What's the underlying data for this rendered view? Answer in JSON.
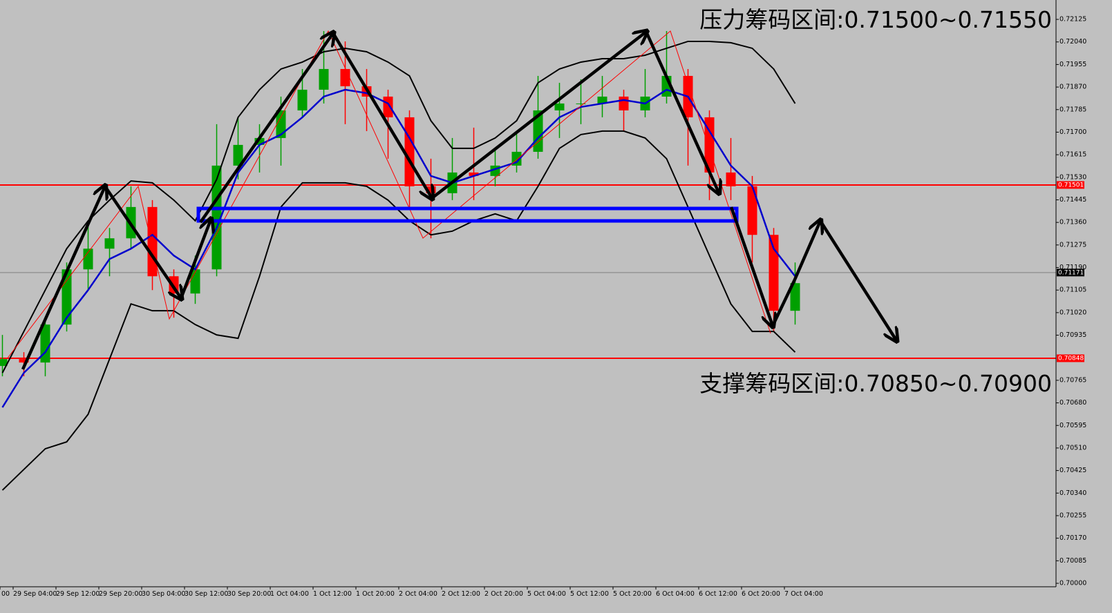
{
  "chart_data": {
    "type": "candlestick",
    "annotations": [
      "压力筹码区间:0.71500~0.71550",
      "支撑筹码区间:0.70850~0.70900"
    ],
    "xtick_labels": [
      "00",
      "29 Sep 04:00",
      "29 Sep 12:00",
      "29 Sep 20:00",
      "30 Sep 04:00",
      "30 Sep 12:00",
      "30 Sep 20:00",
      "1 Oct 04:00",
      "1 Oct 12:00",
      "1 Oct 20:00",
      "2 Oct 04:00",
      "2 Oct 12:00",
      "2 Oct 20:00",
      "5 Oct 04:00",
      "5 Oct 12:00",
      "5 Oct 20:00",
      "6 Oct 04:00",
      "6 Oct 12:00",
      "6 Oct 20:00",
      "7 Oct 04:00"
    ],
    "open": [
      0.70819,
      0.70845,
      0.70832,
      0.70975,
      0.71183,
      0.71261,
      0.713,
      0.71418,
      0.71157,
      0.71092,
      0.71183,
      0.71574,
      0.71652,
      0.71678,
      0.71782,
      0.7186,
      0.71938,
      0.71873,
      0.71834,
      0.71756,
      0.71496,
      0.7147,
      0.71548,
      0.71535,
      0.71574,
      0.71626,
      0.71782,
      0.71808,
      0.71808,
      0.71834,
      0.71782,
      0.71834,
      0.71912,
      0.71756,
      0.71548,
      0.71496,
      0.71313,
      0.71027
    ],
    "high": [
      0.70936,
      0.70871,
      0.71001,
      0.71209,
      0.71366,
      0.71339,
      0.71496,
      0.71444,
      0.71183,
      0.71235,
      0.7173,
      0.71756,
      0.7173,
      0.71834,
      0.71938,
      0.72081,
      0.72042,
      0.71938,
      0.7186,
      0.71782,
      0.716,
      0.71678,
      0.71717,
      0.71639,
      0.71704,
      0.71912,
      0.71886,
      0.71899,
      0.71912,
      0.7186,
      0.71938,
      0.72081,
      0.71938,
      0.71782,
      0.71678,
      0.71535,
      0.71339,
      0.71209
    ],
    "low": [
      0.7078,
      0.7078,
      0.7078,
      0.70949,
      0.71105,
      0.71157,
      0.71261,
      0.71105,
      0.71001,
      0.71053,
      0.71157,
      0.71522,
      0.71548,
      0.71574,
      0.71756,
      0.71808,
      0.7173,
      0.71704,
      0.716,
      0.71418,
      0.713,
      0.71444,
      0.71444,
      0.71496,
      0.71548,
      0.716,
      0.71678,
      0.7173,
      0.71756,
      0.71704,
      0.71756,
      0.71808,
      0.71574,
      0.71444,
      0.71444,
      0.71209,
      0.70949,
      0.70975
    ],
    "close": [
      0.70845,
      0.70832,
      0.70975,
      0.71183,
      0.71261,
      0.713,
      0.71418,
      0.71157,
      0.71092,
      0.71183,
      0.71574,
      0.71652,
      0.71678,
      0.71782,
      0.7186,
      0.71938,
      0.71873,
      0.71834,
      0.71756,
      0.71496,
      0.7147,
      0.71548,
      0.71535,
      0.71574,
      0.71626,
      0.71782,
      0.71808,
      0.71808,
      0.71834,
      0.71782,
      0.71834,
      0.71912,
      0.71756,
      0.71548,
      0.71496,
      0.71313,
      0.71027,
      0.71131
    ],
    "up_color": "#00a000",
    "down_color": "#ff0000",
    "lines": [
      {
        "color": "#0000cc",
        "values": [
          0.70663,
          0.70793,
          0.70871,
          0.71001,
          0.71105,
          0.71222,
          0.71261,
          0.71313,
          0.71235,
          0.71183,
          0.71339,
          0.71548,
          0.71652,
          0.71691,
          0.71756,
          0.71834,
          0.7186,
          0.71847,
          0.71808,
          0.71678,
          0.71535,
          0.71509,
          0.71535,
          0.71561,
          0.71587,
          0.71678,
          0.71756,
          0.71795,
          0.71808,
          0.71821,
          0.71808,
          0.7186,
          0.71834,
          0.71704,
          0.71574,
          0.71496,
          0.71261,
          0.71157
        ]
      },
      {
        "color": "#000000",
        "values": [
          0.70793,
          0.70949,
          0.71105,
          0.71261,
          0.71366,
          0.71444,
          0.71516,
          0.71509,
          0.71444,
          0.71366,
          0.71522,
          0.71756,
          0.7186,
          0.71938,
          0.71964,
          0.72003,
          0.72016,
          0.72003,
          0.71964,
          0.71912,
          0.71743,
          0.71639,
          0.71639,
          0.71678,
          0.71743,
          0.71886,
          0.71938,
          0.71964,
          0.71977,
          0.71977,
          0.7199,
          0.72016,
          0.72042,
          0.72042,
          0.72037,
          0.72016,
          0.71938,
          0.71808
        ]
      },
      {
        "color": "#000000",
        "values": [
          0.70351,
          0.70429,
          0.70507,
          0.70533,
          0.70637,
          0.70845,
          0.71053,
          0.71027,
          0.71027,
          0.70975,
          0.70936,
          0.70923,
          0.71157,
          0.71418,
          0.71509,
          0.71509,
          0.71509,
          0.71496,
          0.71444,
          0.71366,
          0.71313,
          0.71327,
          0.71366,
          0.71392,
          0.71366,
          0.71496,
          0.71639,
          0.71691,
          0.71704,
          0.71704,
          0.71678,
          0.716,
          0.71418,
          0.71235,
          0.71053,
          0.70949,
          0.70949,
          0.70871
        ]
      }
    ],
    "hlines": [
      {
        "value": 0.71501,
        "color": "#ff0000",
        "tag": "#ff0000"
      },
      {
        "value": 0.71171,
        "color": "#808080",
        "tag": "#000000"
      },
      {
        "value": 0.70848,
        "color": "#ff0000",
        "tag": "#ff0000"
      }
    ],
    "ylim": [
      0.69987,
      0.72198
    ],
    "yticks": [
      0.72125,
      {
        "value": 0.7204,
        "label": "0.72040"
      },
      0.71955,
      {
        "value": 0.7187,
        "label": "0.71870"
      },
      0.71785,
      {
        "value": 0.717,
        "label": "0.71700"
      },
      0.71615,
      {
        "value": 0.7153,
        "label": "0.71530"
      },
      0.71445,
      {
        "value": 0.7136,
        "label": "0.71360"
      },
      0.71275,
      {
        "value": 0.7119,
        "label": "0.71190"
      },
      0.71105,
      {
        "value": 0.7102,
        "label": "0.71020"
      },
      0.70935,
      0.70765,
      {
        "value": 0.7068,
        "label": "0.70680"
      },
      0.70595,
      {
        "value": 0.7051,
        "label": "0.70510"
      },
      0.70425,
      {
        "value": 0.7034,
        "label": "0.70340"
      },
      0.70255,
      {
        "value": 0.7017,
        "label": "0.70170"
      },
      0.70085,
      {
        "value": 0.7,
        "label": "0.70000"
      }
    ]
  }
}
